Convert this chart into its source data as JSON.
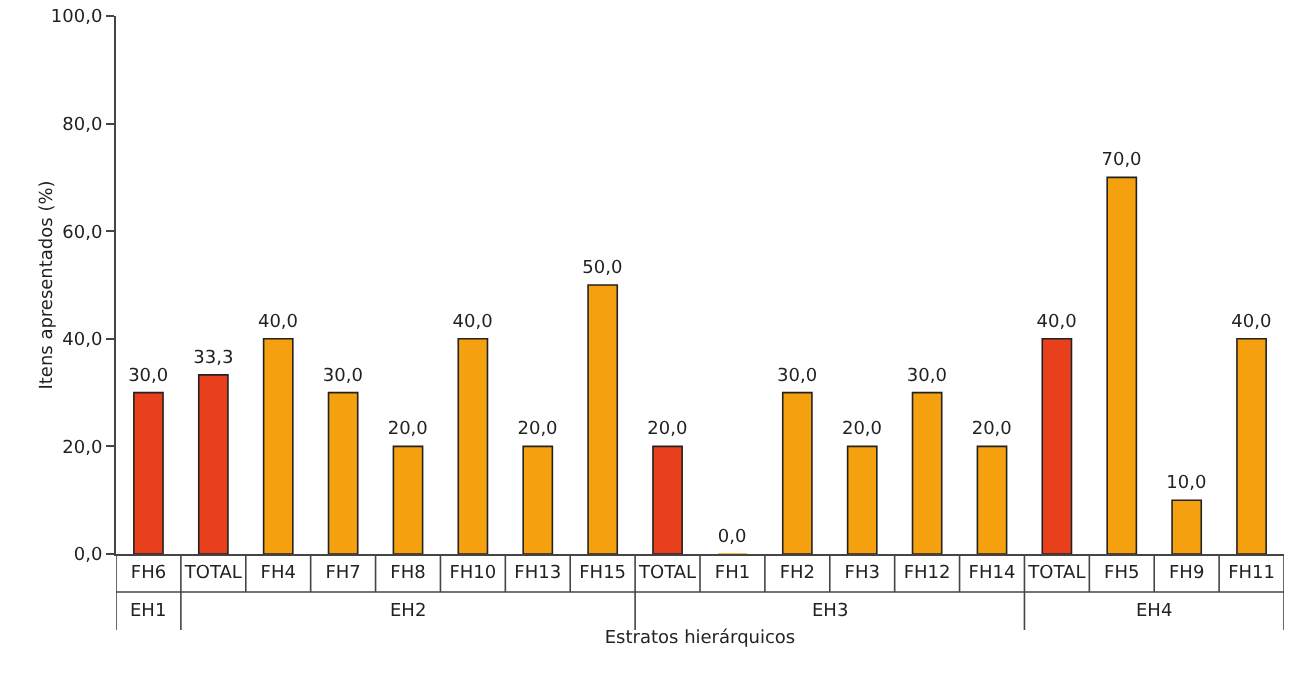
{
  "chart_data": {
    "type": "bar",
    "xlabel": "Estratos hierárquicos",
    "ylabel": "Itens apresentados (%)",
    "categories": [
      "FH6",
      "TOTAL",
      "FH4",
      "FH7",
      "FH8",
      "FH10",
      "FH13",
      "FH15",
      "TOTAL",
      "FH1",
      "FH2",
      "FH3",
      "FH12",
      "FH14",
      "TOTAL",
      "FH5",
      "FH9",
      "FH11"
    ],
    "values": [
      30,
      33.3,
      40,
      30,
      20,
      40,
      20,
      50,
      20,
      0,
      30,
      20,
      30,
      20,
      40,
      70,
      10,
      40
    ],
    "value_labels": [
      "30,0",
      "33,3",
      "40,0",
      "30,0",
      "20,0",
      "40,0",
      "20,0",
      "50,0",
      "20,0",
      "0,0",
      "30,0",
      "20,0",
      "30,0",
      "20,0",
      "40,0",
      "70,0",
      "10,0",
      "40,0"
    ],
    "colors": [
      "#e8401c",
      "#e8401c",
      "#f5a10f",
      "#f5a10f",
      "#f5a10f",
      "#f5a10f",
      "#f5a10f",
      "#f5a10f",
      "#e8401c",
      "#f5a10f",
      "#f5a10f",
      "#f5a10f",
      "#f5a10f",
      "#f5a10f",
      "#e8401c",
      "#f5a10f",
      "#f5a10f",
      "#f5a10f"
    ],
    "annotations": [
      "EH1",
      "EH2",
      "EH3",
      "EH4"
    ],
    "ylim": [
      0,
      100
    ],
    "yticks": [
      {
        "value": 0,
        "label": "0,0"
      },
      {
        "value": 20,
        "label": "20,0"
      },
      {
        "value": 40,
        "label": "40,0"
      },
      {
        "value": 60,
        "label": "60,0"
      },
      {
        "value": 80,
        "label": "80,0"
      },
      {
        "value": 100,
        "label": "100,0"
      }
    ],
    "grid": false,
    "legend": false
  }
}
